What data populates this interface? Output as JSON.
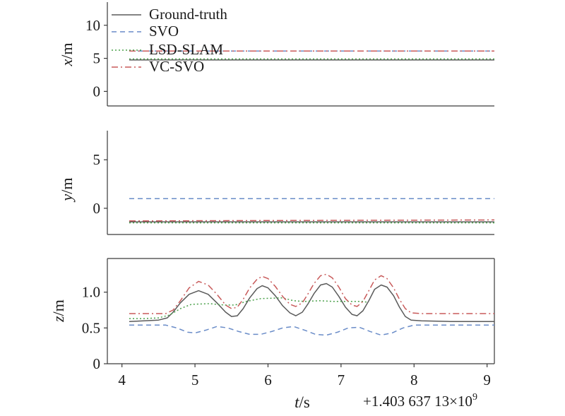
{
  "chart_data": {
    "type": "line",
    "x_label": {
      "main": "t",
      "unit": "/s"
    },
    "x_offset": {
      "mantissa": "+1.403 637 13×10",
      "exponent": "9"
    },
    "x_ticks": [
      4,
      5,
      6,
      7,
      8,
      9
    ],
    "xlim": [
      3.8,
      9.1
    ],
    "legend": {
      "placement": "upper-left of top panel",
      "entries": [
        "Ground-truth",
        "SVO",
        "LSD-SLAM",
        "VC-SVO"
      ]
    },
    "series_styles": [
      {
        "name": "Ground-truth",
        "color": "#5a5a5a",
        "dash": ""
      },
      {
        "name": "SVO",
        "color": "#6a8cc8",
        "dash": "7 5"
      },
      {
        "name": "LSD-SLAM",
        "color": "#4aa04a",
        "dash": "2 3"
      },
      {
        "name": "VC-SVO",
        "color": "#c85a5a",
        "dash": "9 4 2 4"
      }
    ],
    "panels": [
      {
        "ylabel": {
          "main": "x",
          "unit": "/m"
        },
        "ylim": [
          -2.2,
          13.5
        ],
        "yticks": [
          0,
          5,
          10
        ],
        "series": [
          {
            "name": "Ground-truth",
            "points": [
              [
                4.1,
                4.75
              ],
              [
                9.1,
                4.75
              ]
            ]
          },
          {
            "name": "SVO",
            "points": [
              [
                4.1,
                6.1
              ],
              [
                9.1,
                6.1
              ]
            ]
          },
          {
            "name": "LSD-SLAM",
            "points": [
              [
                4.1,
                4.9
              ],
              [
                9.1,
                4.9
              ]
            ]
          },
          {
            "name": "VC-SVO",
            "points": [
              [
                4.1,
                6.1
              ],
              [
                9.1,
                6.1
              ]
            ]
          }
        ]
      },
      {
        "ylabel": {
          "main": "y",
          "unit": "/m"
        },
        "ylim": [
          -2.7,
          8.0
        ],
        "yticks": [
          0,
          5
        ],
        "series": [
          {
            "name": "Ground-truth",
            "points": [
              [
                4.1,
                -1.4
              ],
              [
                9.1,
                -1.4
              ]
            ]
          },
          {
            "name": "SVO",
            "points": [
              [
                4.1,
                1.0
              ],
              [
                9.1,
                1.0
              ]
            ]
          },
          {
            "name": "LSD-SLAM",
            "points": [
              [
                4.1,
                -1.5
              ],
              [
                9.1,
                -1.5
              ]
            ]
          },
          {
            "name": "VC-SVO",
            "points": [
              [
                4.1,
                -1.3
              ],
              [
                9.1,
                -1.2
              ]
            ]
          }
        ]
      },
      {
        "ylabel": {
          "main": "z",
          "unit": "/m"
        },
        "ylim": [
          0,
          1.47
        ],
        "yticks": [
          0,
          0.5,
          1.0
        ],
        "ytick_labels": [
          "0",
          "0.5",
          "1.0"
        ],
        "series": [
          {
            "name": "Ground-truth",
            "points": [
              [
                4.1,
                0.59
              ],
              [
                4.3,
                0.6
              ],
              [
                4.5,
                0.61
              ],
              [
                4.62,
                0.64
              ],
              [
                4.7,
                0.72
              ],
              [
                4.8,
                0.85
              ],
              [
                4.92,
                0.97
              ],
              [
                5.05,
                1.02
              ],
              [
                5.18,
                0.97
              ],
              [
                5.3,
                0.85
              ],
              [
                5.42,
                0.72
              ],
              [
                5.5,
                0.66
              ],
              [
                5.58,
                0.67
              ],
              [
                5.66,
                0.77
              ],
              [
                5.75,
                0.92
              ],
              [
                5.85,
                1.05
              ],
              [
                5.92,
                1.09
              ],
              [
                6.0,
                1.06
              ],
              [
                6.1,
                0.95
              ],
              [
                6.2,
                0.81
              ],
              [
                6.3,
                0.71
              ],
              [
                6.38,
                0.67
              ],
              [
                6.47,
                0.72
              ],
              [
                6.55,
                0.84
              ],
              [
                6.63,
                0.98
              ],
              [
                6.72,
                1.1
              ],
              [
                6.8,
                1.12
              ],
              [
                6.88,
                1.07
              ],
              [
                6.97,
                0.94
              ],
              [
                7.06,
                0.79
              ],
              [
                7.15,
                0.69
              ],
              [
                7.22,
                0.67
              ],
              [
                7.3,
                0.74
              ],
              [
                7.38,
                0.88
              ],
              [
                7.46,
                1.04
              ],
              [
                7.55,
                1.1
              ],
              [
                7.63,
                1.07
              ],
              [
                7.72,
                0.95
              ],
              [
                7.8,
                0.79
              ],
              [
                7.88,
                0.66
              ],
              [
                7.96,
                0.61
              ],
              [
                8.1,
                0.6
              ],
              [
                8.5,
                0.59
              ],
              [
                9.1,
                0.59
              ]
            ]
          },
          {
            "name": "SVO",
            "points": [
              [
                4.1,
                0.54
              ],
              [
                4.6,
                0.54
              ],
              [
                4.75,
                0.5
              ],
              [
                4.9,
                0.44
              ],
              [
                5.0,
                0.43
              ],
              [
                5.15,
                0.47
              ],
              [
                5.3,
                0.52
              ],
              [
                5.45,
                0.5
              ],
              [
                5.6,
                0.45
              ],
              [
                5.75,
                0.41
              ],
              [
                5.9,
                0.41
              ],
              [
                6.05,
                0.45
              ],
              [
                6.2,
                0.5
              ],
              [
                6.35,
                0.52
              ],
              [
                6.5,
                0.47
              ],
              [
                6.65,
                0.41
              ],
              [
                6.8,
                0.4
              ],
              [
                6.95,
                0.44
              ],
              [
                7.1,
                0.5
              ],
              [
                7.25,
                0.51
              ],
              [
                7.4,
                0.45
              ],
              [
                7.55,
                0.4
              ],
              [
                7.7,
                0.43
              ],
              [
                7.85,
                0.5
              ],
              [
                8.0,
                0.54
              ],
              [
                8.3,
                0.54
              ],
              [
                9.1,
                0.54
              ]
            ]
          },
          {
            "name": "LSD-SLAM",
            "points": [
              [
                4.1,
                0.63
              ],
              [
                4.3,
                0.63
              ],
              [
                4.5,
                0.64
              ],
              [
                4.65,
                0.68
              ],
              [
                4.8,
                0.77
              ],
              [
                4.95,
                0.83
              ],
              [
                5.2,
                0.84
              ],
              [
                5.4,
                0.82
              ],
              [
                5.55,
                0.82
              ],
              [
                5.7,
                0.87
              ],
              [
                5.9,
                0.91
              ],
              [
                6.2,
                0.92
              ],
              [
                6.35,
                0.88
              ],
              [
                6.5,
                0.87
              ],
              [
                6.7,
                0.88
              ],
              [
                6.9,
                0.87
              ],
              [
                7.1,
                0.87
              ],
              [
                7.3,
                0.87
              ],
              [
                7.35,
                0.86
              ]
            ]
          },
          {
            "name": "VC-SVO",
            "points": [
              [
                4.1,
                0.7
              ],
              [
                4.6,
                0.7
              ],
              [
                4.7,
                0.75
              ],
              [
                4.8,
                0.88
              ],
              [
                4.92,
                1.06
              ],
              [
                5.05,
                1.15
              ],
              [
                5.18,
                1.1
              ],
              [
                5.3,
                0.97
              ],
              [
                5.42,
                0.82
              ],
              [
                5.5,
                0.77
              ],
              [
                5.58,
                0.79
              ],
              [
                5.66,
                0.9
              ],
              [
                5.75,
                1.06
              ],
              [
                5.85,
                1.18
              ],
              [
                5.92,
                1.22
              ],
              [
                6.0,
                1.19
              ],
              [
                6.1,
                1.08
              ],
              [
                6.2,
                0.94
              ],
              [
                6.3,
                0.83
              ],
              [
                6.38,
                0.8
              ],
              [
                6.47,
                0.85
              ],
              [
                6.55,
                0.98
              ],
              [
                6.63,
                1.12
              ],
              [
                6.72,
                1.23
              ],
              [
                6.8,
                1.25
              ],
              [
                6.88,
                1.2
              ],
              [
                6.97,
                1.07
              ],
              [
                7.06,
                0.91
              ],
              [
                7.15,
                0.82
              ],
              [
                7.22,
                0.8
              ],
              [
                7.3,
                0.87
              ],
              [
                7.38,
                1.02
              ],
              [
                7.46,
                1.17
              ],
              [
                7.55,
                1.23
              ],
              [
                7.63,
                1.19
              ],
              [
                7.72,
                1.06
              ],
              [
                7.8,
                0.9
              ],
              [
                7.88,
                0.77
              ],
              [
                7.96,
                0.71
              ],
              [
                8.1,
                0.7
              ],
              [
                8.5,
                0.7
              ],
              [
                9.1,
                0.7
              ]
            ]
          }
        ]
      }
    ]
  }
}
